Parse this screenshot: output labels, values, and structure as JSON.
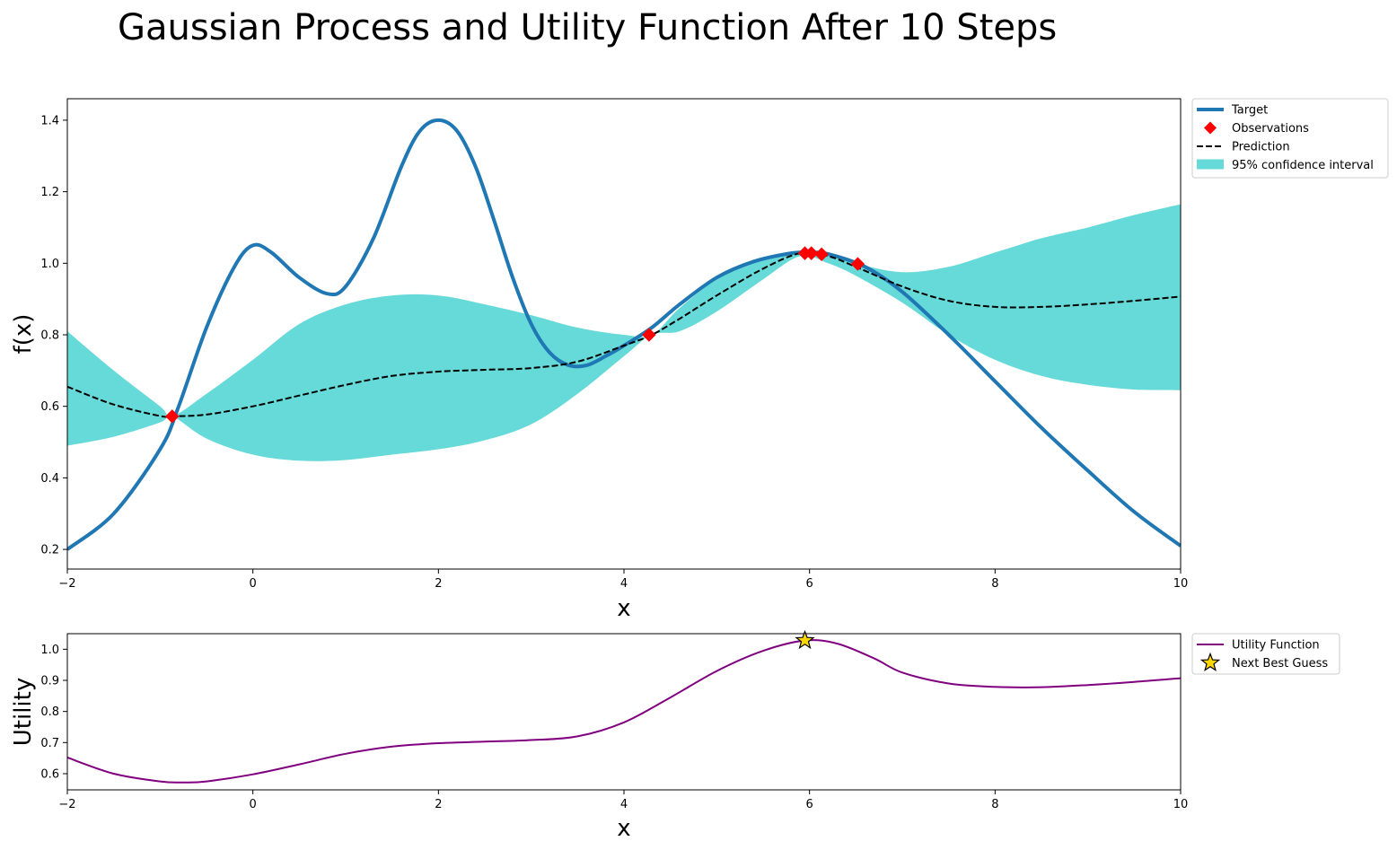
{
  "figure": {
    "title": "Gaussian Process and Utility Function After 10 Steps"
  },
  "chart_data": [
    {
      "type": "line",
      "xlabel": "x",
      "ylabel": "f(x)",
      "xlim": [
        -2,
        10
      ],
      "ylim": [
        0.145,
        1.46
      ],
      "xticks": [
        -2,
        0,
        2,
        4,
        6,
        8,
        10
      ],
      "xtick_labels": [
        "−2",
        "0",
        "2",
        "4",
        "6",
        "8",
        "10"
      ],
      "yticks": [
        0.2,
        0.4,
        0.6,
        0.8,
        1.0,
        1.2,
        1.4
      ],
      "ytick_labels": [
        "0.2",
        "0.4",
        "0.6",
        "0.8",
        "1.0",
        "1.2",
        "1.4"
      ],
      "grid": false,
      "legend_position": "outside upper right",
      "legend": [
        {
          "label": "Target",
          "kind": "line",
          "color": "#1f77b4"
        },
        {
          "label": "Observations",
          "kind": "diamond",
          "color": "#ff0000"
        },
        {
          "label": "Prediction",
          "kind": "dashed",
          "color": "#000000"
        },
        {
          "label": "95% confidence interval",
          "kind": "patch",
          "color": "#66d9d9"
        }
      ],
      "series": [
        {
          "name": "Target",
          "color": "#1f77b4",
          "x": [
            -2,
            -1.5,
            -1,
            -0.8,
            -0.5,
            -0.2,
            0,
            0.2,
            0.5,
            0.8,
            1,
            1.3,
            1.6,
            1.8,
            2,
            2.2,
            2.4,
            2.6,
            2.8,
            3,
            3.2,
            3.4,
            3.6,
            3.8,
            4,
            4.3,
            4.6,
            5,
            5.4,
            5.8,
            6,
            6.2,
            6.6,
            7,
            7.5,
            8,
            8.5,
            9,
            9.5,
            10
          ],
          "y": [
            0.2,
            0.3,
            0.48,
            0.6,
            0.82,
            0.99,
            1.05,
            1.03,
            0.96,
            0.915,
            0.935,
            1.07,
            1.27,
            1.37,
            1.4,
            1.37,
            1.27,
            1.12,
            0.96,
            0.83,
            0.75,
            0.715,
            0.715,
            0.74,
            0.77,
            0.82,
            0.885,
            0.96,
            1.005,
            1.028,
            1.03,
            1.026,
            0.99,
            0.92,
            0.8,
            0.67,
            0.54,
            0.42,
            0.305,
            0.21
          ]
        },
        {
          "name": "Observations",
          "color": "#ff0000",
          "x": [
            -0.87,
            4.27,
            5.95,
            6.02,
            6.13,
            6.52
          ],
          "y": [
            0.572,
            0.8,
            1.028,
            1.028,
            1.025,
            0.998
          ]
        },
        {
          "name": "Prediction",
          "color": "#000000",
          "x": [
            -2,
            -1.5,
            -1,
            -0.87,
            -0.5,
            0,
            0.5,
            1,
            1.5,
            2,
            2.5,
            3,
            3.5,
            4,
            4.3,
            4.6,
            5,
            5.5,
            5.9,
            6.2,
            6.5,
            7,
            7.5,
            8,
            8.5,
            9,
            9.5,
            10
          ],
          "y": [
            0.655,
            0.605,
            0.573,
            0.572,
            0.577,
            0.6,
            0.63,
            0.66,
            0.685,
            0.697,
            0.702,
            0.707,
            0.725,
            0.77,
            0.8,
            0.845,
            0.91,
            0.985,
            1.028,
            1.02,
            0.99,
            0.935,
            0.895,
            0.878,
            0.878,
            0.885,
            0.895,
            0.907
          ]
        },
        {
          "name": "95% confidence interval",
          "color": "#66d9d9",
          "x": [
            -2,
            -1.5,
            -1,
            -0.87,
            -0.5,
            0,
            0.5,
            1,
            1.5,
            2,
            2.5,
            3,
            3.5,
            4,
            4.3,
            4.6,
            5,
            5.5,
            5.9,
            6.2,
            6.5,
            7,
            7.5,
            8,
            8.5,
            9,
            9.5,
            10
          ],
          "lower": [
            0.49,
            0.515,
            0.555,
            0.572,
            0.51,
            0.465,
            0.448,
            0.45,
            0.465,
            0.48,
            0.505,
            0.55,
            0.635,
            0.74,
            0.8,
            0.81,
            0.865,
            0.955,
            1.02,
            1.0,
            0.965,
            0.89,
            0.8,
            0.73,
            0.685,
            0.66,
            0.647,
            0.645
          ],
          "upper": [
            0.81,
            0.7,
            0.6,
            0.572,
            0.635,
            0.73,
            0.83,
            0.885,
            0.91,
            0.91,
            0.885,
            0.855,
            0.82,
            0.8,
            0.8,
            0.875,
            0.955,
            1.015,
            1.035,
            1.03,
            1.0,
            0.975,
            0.99,
            1.03,
            1.07,
            1.1,
            1.135,
            1.165
          ]
        }
      ]
    },
    {
      "type": "line",
      "xlabel": "x",
      "ylabel": "Utility",
      "xlim": [
        -2,
        10
      ],
      "ylim": [
        0.548,
        1.05
      ],
      "xticks": [
        -2,
        0,
        2,
        4,
        6,
        8,
        10
      ],
      "xtick_labels": [
        "−2",
        "0",
        "2",
        "4",
        "6",
        "8",
        "10"
      ],
      "yticks": [
        0.6,
        0.7,
        0.8,
        0.9,
        1.0
      ],
      "ytick_labels": [
        "0.6",
        "0.7",
        "0.8",
        "0.9",
        "1.0"
      ],
      "grid": false,
      "legend_position": "outside upper right",
      "legend": [
        {
          "label": "Utility Function",
          "kind": "line",
          "color": "#800080"
        },
        {
          "label": "Next Best Guess",
          "kind": "star",
          "color": "#ffd700"
        }
      ],
      "series": [
        {
          "name": "Utility Function",
          "color": "#800080",
          "x": [
            -2,
            -1.5,
            -1,
            -0.75,
            -0.5,
            0,
            0.5,
            1,
            1.5,
            2,
            2.5,
            3,
            3.5,
            4,
            4.5,
            5,
            5.5,
            5.95,
            6.3,
            6.7,
            7,
            7.5,
            8,
            8.5,
            9,
            9.5,
            10
          ],
          "y": [
            0.652,
            0.6,
            0.575,
            0.572,
            0.575,
            0.598,
            0.63,
            0.664,
            0.687,
            0.698,
            0.703,
            0.708,
            0.72,
            0.765,
            0.845,
            0.93,
            0.995,
            1.028,
            1.018,
            0.97,
            0.925,
            0.89,
            0.879,
            0.878,
            0.885,
            0.895,
            0.907
          ]
        },
        {
          "name": "Next Best Guess",
          "color": "#ffd700",
          "x": [
            5.95
          ],
          "y": [
            1.028
          ]
        }
      ]
    }
  ]
}
